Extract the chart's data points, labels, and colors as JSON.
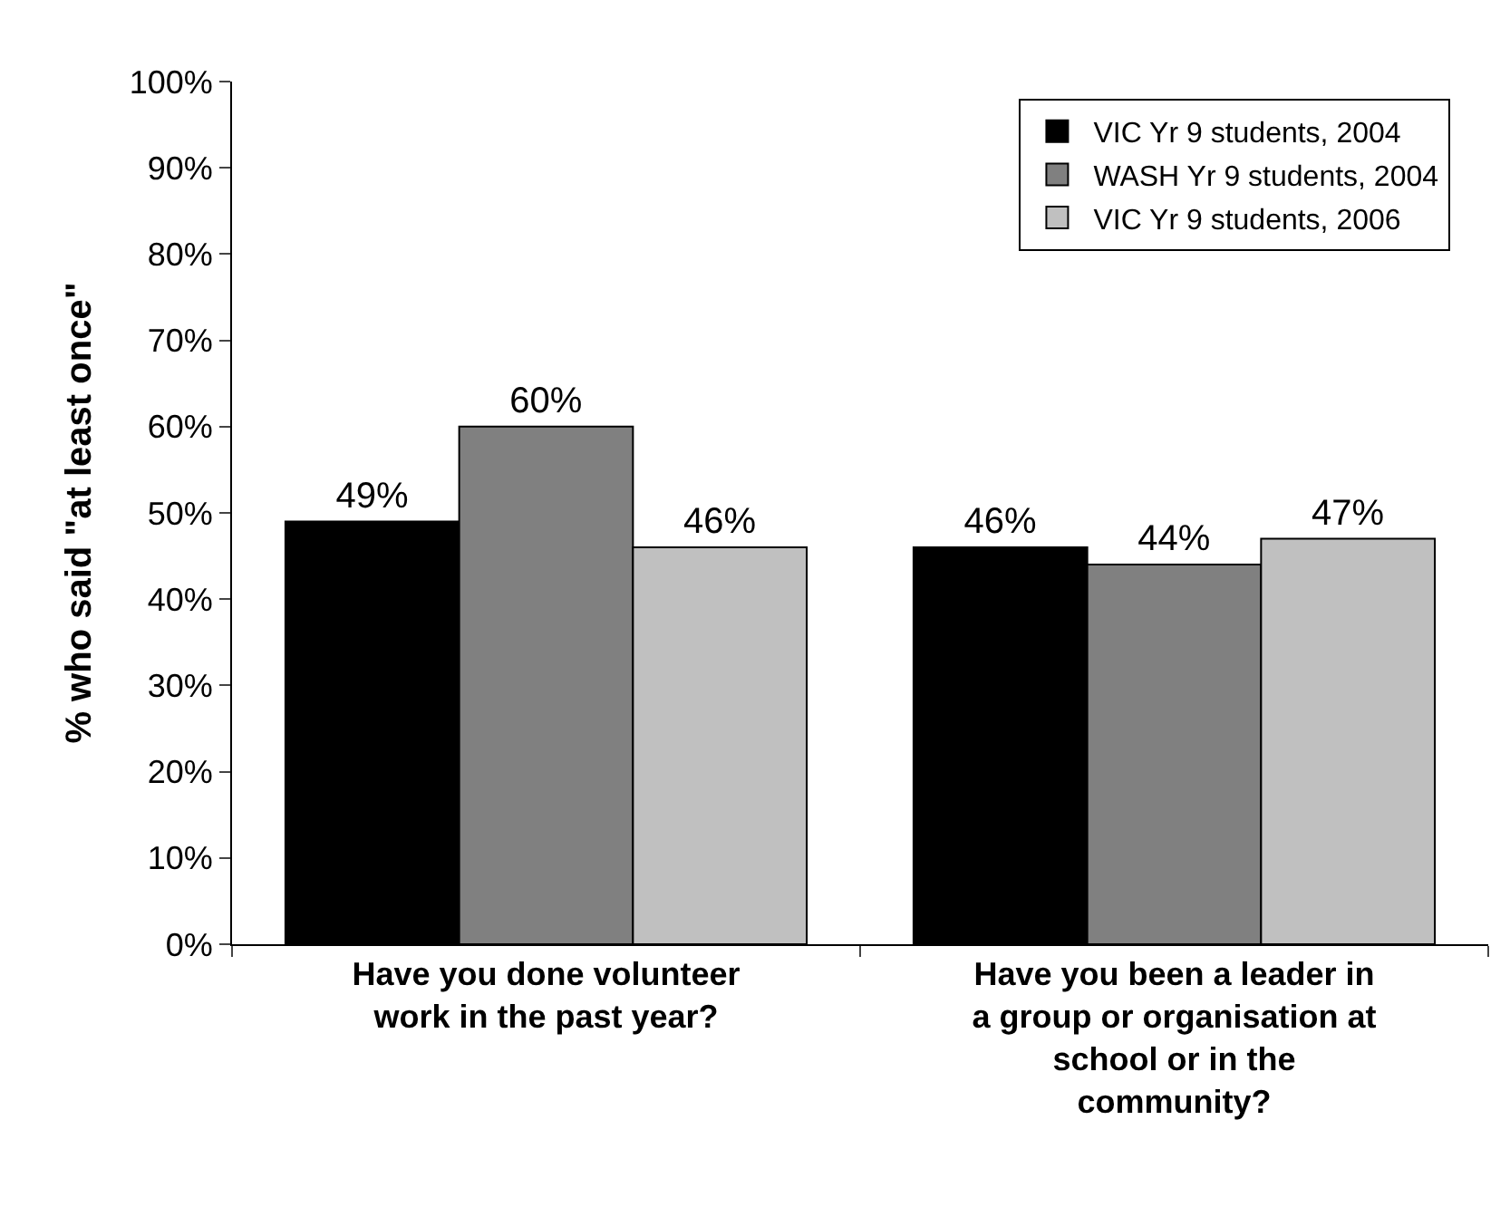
{
  "chart_data": {
    "type": "bar",
    "ylabel": "% who said \"at least once\"",
    "categories": [
      "Have you done volunteer work in the past year?",
      "Have you been a leader in a group or organisation at school or in the community?"
    ],
    "series": [
      {
        "name": "VIC Yr 9 students, 2004",
        "color": "#000000",
        "values": [
          49,
          46
        ]
      },
      {
        "name": "WASH Yr 9 students, 2004",
        "color": "#808080",
        "values": [
          60,
          44
        ]
      },
      {
        "name": "VIC Yr 9 students, 2006",
        "color": "#c0c0c0",
        "values": [
          46,
          47
        ]
      }
    ],
    "value_labels": [
      [
        "49%",
        "46%"
      ],
      [
        "60%",
        "44%"
      ],
      [
        "46%",
        "47%"
      ]
    ],
    "ylim": [
      0,
      100
    ],
    "yticks": [
      {
        "value": 0,
        "label": "0%"
      },
      {
        "value": 10,
        "label": "10%"
      },
      {
        "value": 20,
        "label": "20%"
      },
      {
        "value": 30,
        "label": "30%"
      },
      {
        "value": 40,
        "label": "40%"
      },
      {
        "value": 50,
        "label": "50%"
      },
      {
        "value": 60,
        "label": "60%"
      },
      {
        "value": 70,
        "label": "70%"
      },
      {
        "value": 80,
        "label": "80%"
      },
      {
        "value": 90,
        "label": "90%"
      },
      {
        "value": 100,
        "label": "100%"
      }
    ],
    "legend": "top right"
  }
}
